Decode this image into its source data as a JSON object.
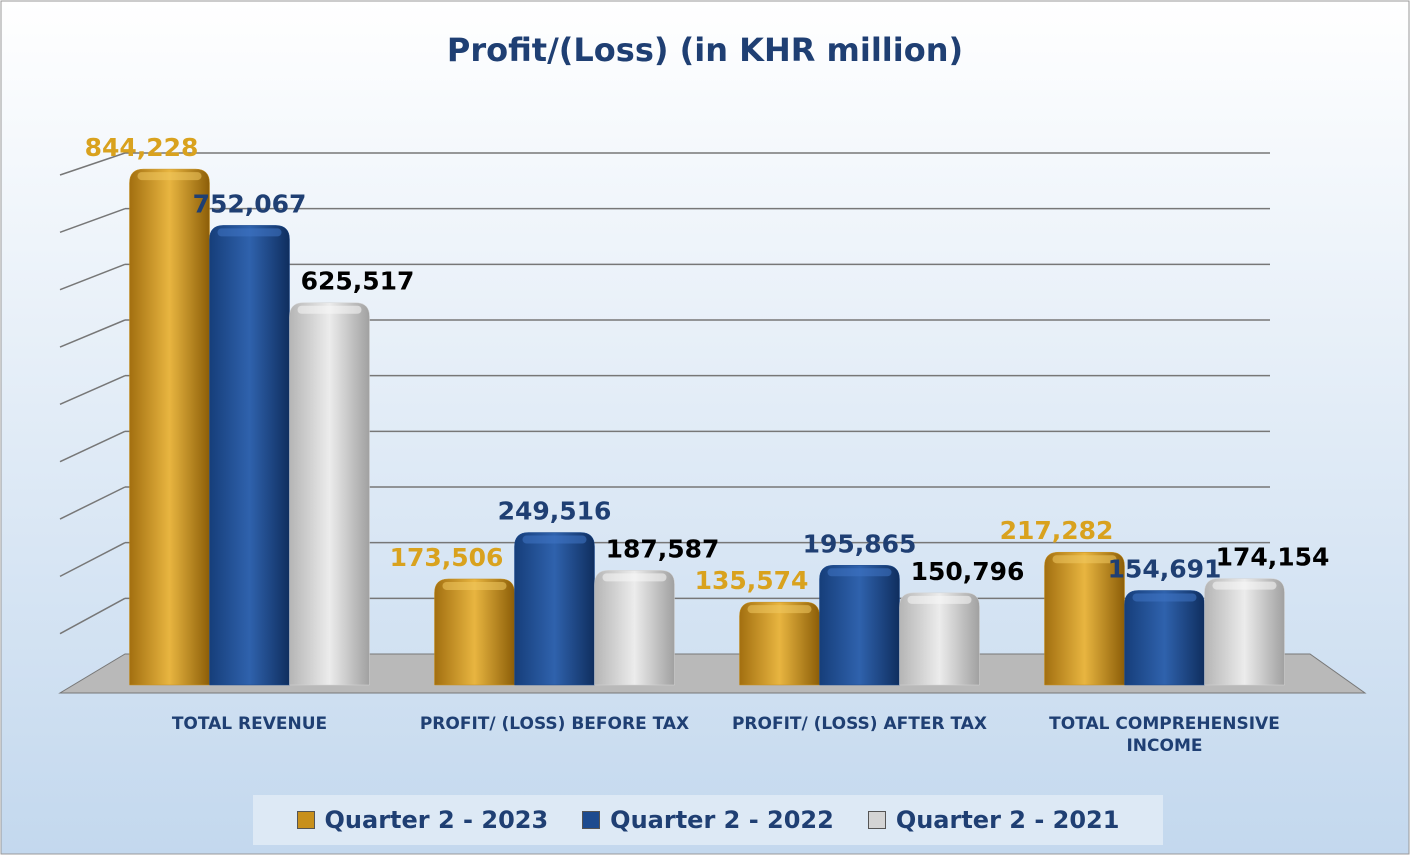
{
  "chart_data": {
    "type": "bar",
    "title": "Profit/(Loss) (in KHR million)",
    "categories": [
      "TOTAL REVENUE",
      "PROFIT/ (LOSS) BEFORE TAX",
      "PROFIT/ (LOSS) AFTER TAX",
      "TOTAL COMPREHENSIVE INCOME"
    ],
    "series": [
      {
        "name": "Quarter 2 - 2023",
        "color": "#c8901c",
        "label_color": "#d9a21e",
        "values": [
          844228,
          173506,
          135574,
          217282
        ],
        "value_labels": [
          "844,228",
          "173,506",
          "135,574",
          "217,282"
        ]
      },
      {
        "name": "Quarter 2 - 2022",
        "color": "#1d4b8f",
        "label_color": "#1f3f73",
        "values": [
          752067,
          249516,
          195865,
          154691
        ],
        "value_labels": [
          "752,067",
          "249,516",
          "195,865",
          "154,691"
        ]
      },
      {
        "name": "Quarter 2 - 2021",
        "color": "#d4d4d4",
        "label_color": "#000000",
        "values": [
          625517,
          187587,
          150796,
          174154
        ],
        "value_labels": [
          "625,517",
          "187,587",
          "150,796",
          "174,154"
        ]
      }
    ],
    "ylim": [
      0,
      900000
    ],
    "yticks": [
      0,
      100000,
      200000,
      300000,
      400000,
      500000,
      600000,
      700000,
      800000,
      900000
    ],
    "grid": true,
    "legend": "bottom"
  }
}
